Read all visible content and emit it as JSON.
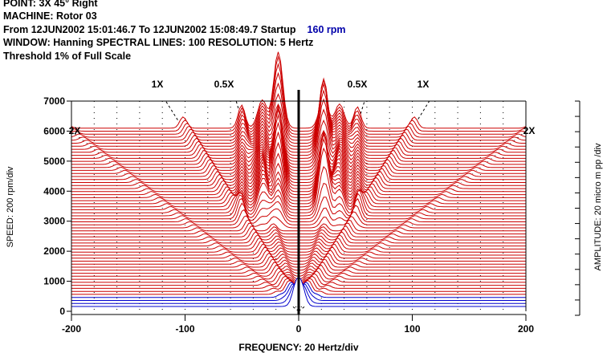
{
  "header": {
    "point_line": "POINT: 3X    45° Right",
    "machine_line": "MACHINE: Rotor 03",
    "from_line": "From 12JUN2002 15:01:46.7 To 12JUN2002 15:08:49.7 Startup",
    "rpm_badge": "160 rpm",
    "window_line": "WINDOW: Hanning  SPECTRAL LINES: 100  RESOLUTION: 5 Hertz",
    "threshold_line": "Threshold 1% of Full Scale"
  },
  "chart_data": {
    "type": "waterfall",
    "x_axis": {
      "label": "FREQUENCY: 20 Hertz/div",
      "range": [
        -200,
        200
      ],
      "tick_labels": [
        "-200",
        "-100",
        "0",
        "100",
        "200"
      ],
      "ticks": [
        -200,
        -100,
        0,
        100,
        200
      ]
    },
    "y_axis": {
      "label": "SPEED: 200 rpm/div",
      "range": [
        0,
        7000
      ],
      "tick_labels": [
        "0",
        "1000",
        "2000",
        "3000",
        "4000",
        "5000",
        "6000",
        "7000"
      ],
      "ticks": [
        0,
        1000,
        2000,
        3000,
        4000,
        5000,
        6000,
        7000
      ]
    },
    "right_axis_label": "AMPLITUDE: 20 micro m pp /div",
    "order_lines": [
      {
        "label": "1X",
        "order": 1,
        "side": "left"
      },
      {
        "label": "0.5X",
        "order": 0.5,
        "side": "left"
      },
      {
        "label": "0.5X",
        "order": 0.5,
        "side": "right"
      },
      {
        "label": "1X",
        "order": 1,
        "side": "right"
      },
      {
        "label": "2X",
        "order": 2,
        "side": "left"
      },
      {
        "label": "2X",
        "order": 2,
        "side": "right"
      }
    ],
    "speed_range_rpm": [
      160,
      6100
    ],
    "resonance_peaks": [
      {
        "freq_hz": -18,
        "speed_rpm": [
          2800,
          7200
        ]
      },
      {
        "freq_hz": 22,
        "speed_rpm": [
          2800,
          7000
        ]
      }
    ],
    "colors": {
      "trace": "#cc0000",
      "axis": "#000000",
      "grid": "#000000",
      "low_speed": "#0000cc"
    },
    "grid": true
  }
}
